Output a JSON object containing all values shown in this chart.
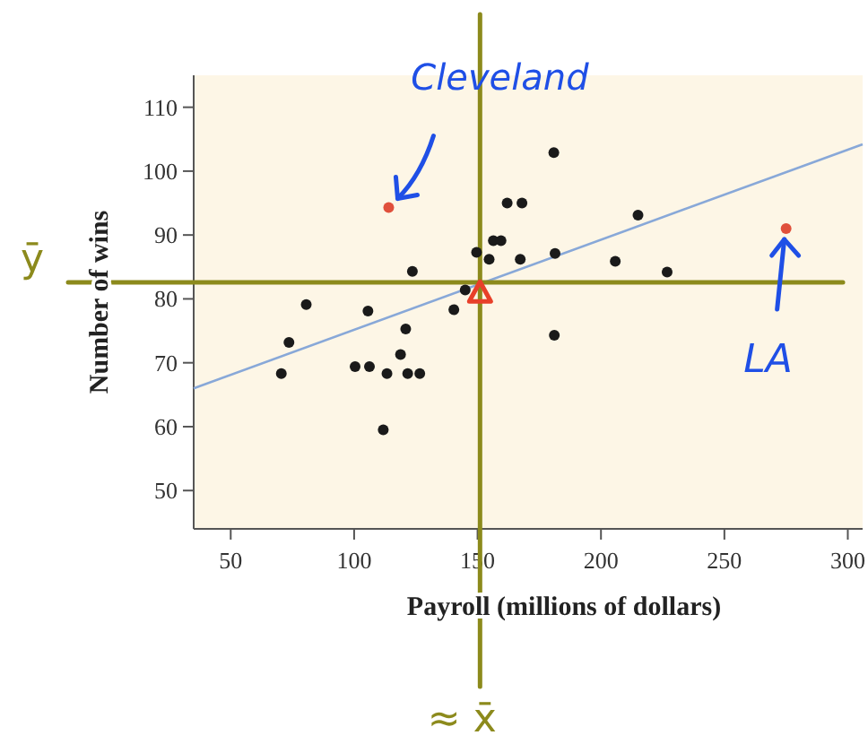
{
  "chart_data": {
    "type": "scatter",
    "xlabel": "Payroll (millions of dollars)",
    "ylabel": "Number of wins",
    "xlim": [
      35,
      306
    ],
    "xticks": [
      50,
      100,
      150,
      200,
      250,
      300
    ],
    "ylim": [
      44,
      115
    ],
    "yticks": [
      50,
      60,
      70,
      80,
      90,
      100,
      110
    ],
    "grid": false,
    "marker": "circle",
    "series": [
      {
        "color": "#1a1a1a",
        "x": [
          162,
          168,
          149.6,
          156.4,
          159.5,
          154.7,
          167.3,
          123.6,
          145,
          80.6,
          140.4,
          105.6,
          120.9,
          73.6,
          118.8,
          100.4,
          106.2,
          70.5,
          113.3,
          121.7,
          126.6,
          111.8,
          180.9,
          215,
          181.4,
          205.8,
          226.8,
          181.1
        ],
        "values": [
          95,
          95,
          87.3,
          89.1,
          89.1,
          86.2,
          86.2,
          84.3,
          81.4,
          79.1,
          78.3,
          78.1,
          75.3,
          73.2,
          71.3,
          69.4,
          69.4,
          68.3,
          68.3,
          68.3,
          68.3,
          59.5,
          102.9,
          93.1,
          87.1,
          85.9,
          84.2,
          74.3
        ]
      },
      {
        "color": "#e0503c",
        "x": [
          114,
          275
        ],
        "values": [
          94.3,
          91
        ]
      },
      {
        "type": "line",
        "marker": "none",
        "color": "#88a8d8",
        "x": [
          35,
          306
        ],
        "values": [
          66,
          104.2
        ]
      },
      {
        "color": "#e8402a",
        "marker": "triangle",
        "x": [
          151
        ],
        "values": [
          81
        ]
      }
    ],
    "ref_lines": [
      {
        "axis": "x",
        "value": 151,
        "label": "≈ x̄",
        "color": "#8c8a1c"
      },
      {
        "axis": "y",
        "value": 82.6,
        "label": "ȳ",
        "color": "#8c8a1c"
      }
    ],
    "annotations": [
      {
        "text": "Cleveland",
        "x": 114,
        "y": 94.3
      },
      {
        "text": "LA",
        "x": 275,
        "y": 91
      }
    ]
  }
}
